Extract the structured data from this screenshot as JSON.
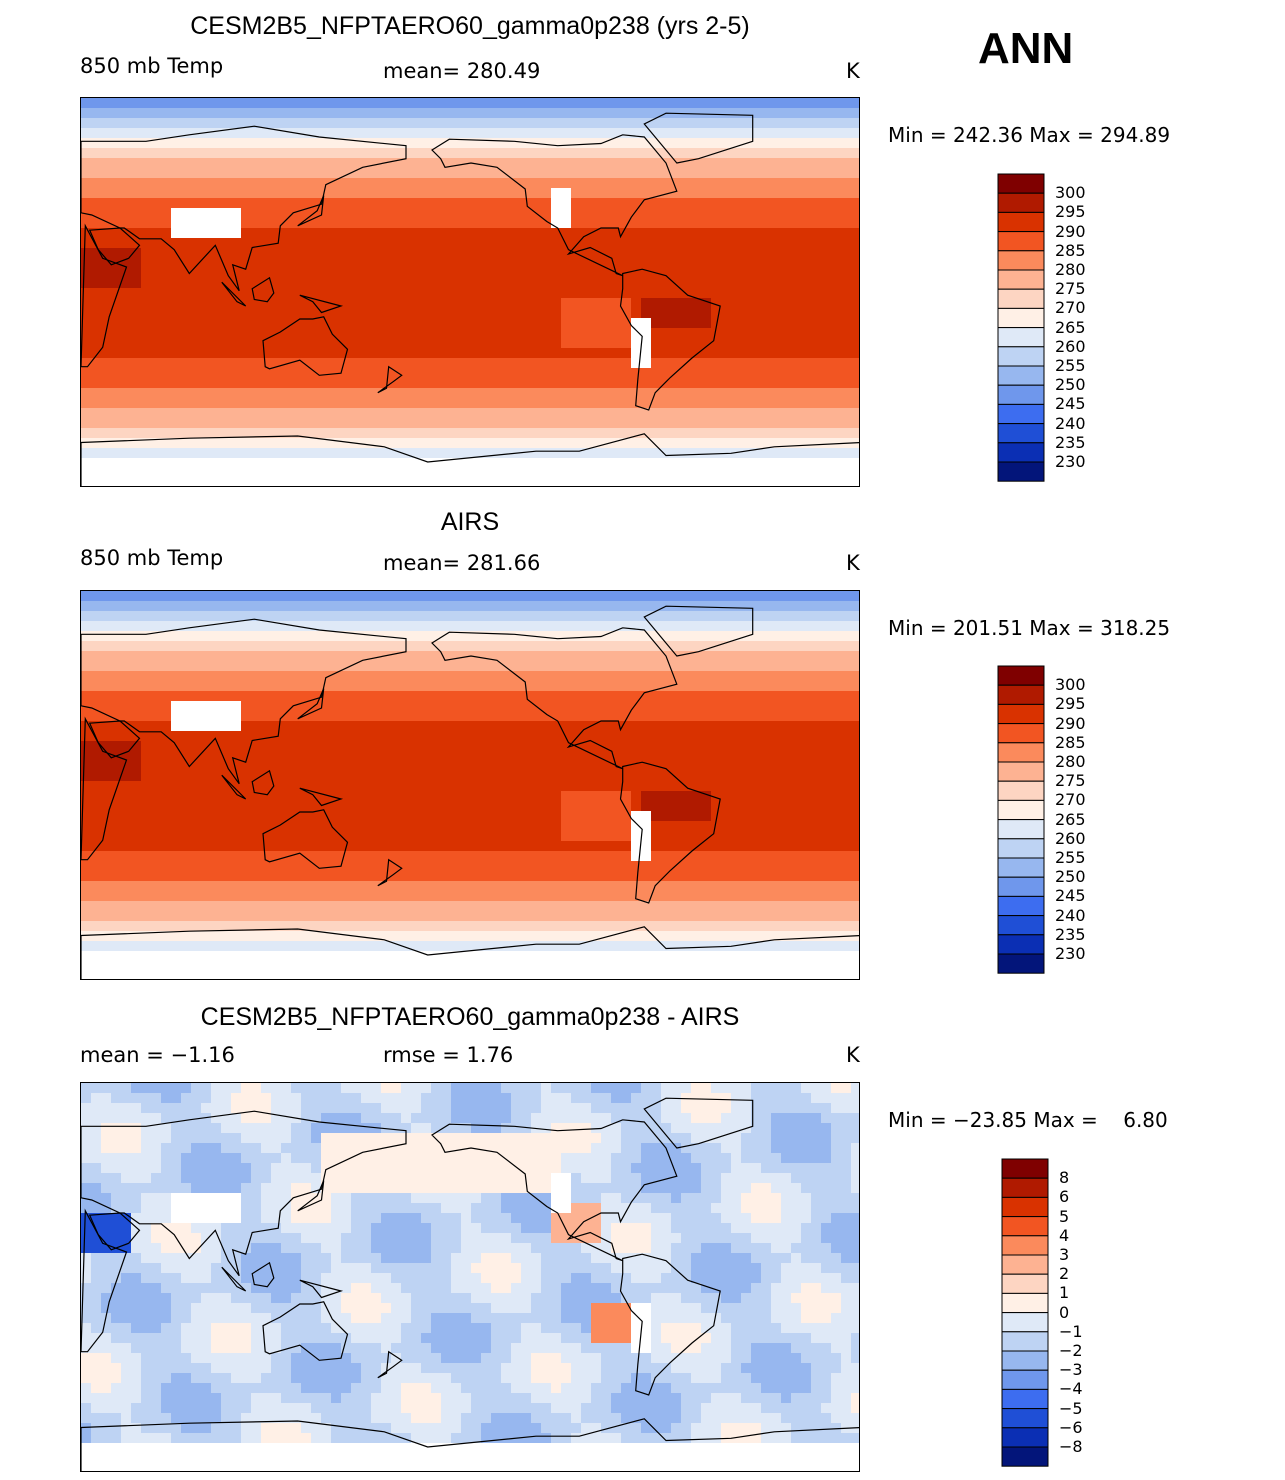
{
  "season": "ANN",
  "panels": [
    {
      "title": "CESM2B5_NFPTAERO60_gamma0p238 (yrs 2-5)",
      "left_label": "850 mb Temp",
      "center_label": "mean= 280.49",
      "units": "K",
      "minmax": "Min = 242.36 Max = 294.89",
      "colorbar": [
        "300",
        "295",
        "290",
        "285",
        "280",
        "275",
        "270",
        "265",
        "260",
        "255",
        "250",
        "245",
        "240",
        "235",
        "230"
      ]
    },
    {
      "title": "AIRS",
      "left_label": "850 mb Temp",
      "center_label": "mean= 281.66",
      "units": "K",
      "minmax": "Min = 201.51 Max = 318.25",
      "colorbar": [
        "300",
        "295",
        "290",
        "285",
        "280",
        "275",
        "270",
        "265",
        "260",
        "255",
        "250",
        "245",
        "240",
        "235",
        "230"
      ]
    },
    {
      "title": "CESM2B5_NFPTAERO60_gamma0p238 - AIRS",
      "left_label": "mean =  −1.16",
      "center_label": "rmse =    1.76",
      "units": "K",
      "minmax": "Min = −23.85 Max =    6.80",
      "colorbar": [
        "8",
        "6",
        "5",
        "4",
        "3",
        "2",
        "1",
        "0",
        "−1",
        "−2",
        "−3",
        "−4",
        "−5",
        "−6",
        "−8"
      ]
    }
  ],
  "colors": {
    "temp_scale": [
      "#7f0000",
      "#b01a00",
      "#d93200",
      "#f25522",
      "#fb8a5c",
      "#fdb292",
      "#fdd5c2",
      "#fff0e6",
      "#dfe9f7",
      "#bed3f3",
      "#97b7ef",
      "#6f97ec",
      "#3d6df0",
      "#1f4fd6",
      "#0b2fb4",
      "#03157a"
    ],
    "diff_scale": [
      "#7f0000",
      "#b01a00",
      "#d93200",
      "#f25522",
      "#fb8a5c",
      "#fdb292",
      "#fdd5c2",
      "#fff0e6",
      "#dfe9f7",
      "#bed3f3",
      "#97b7ef",
      "#6f97ec",
      "#3d6df0",
      "#1f4fd6",
      "#0b2fb4",
      "#03157a"
    ],
    "land_outline": "#000000",
    "missing": "#ffffff"
  }
}
